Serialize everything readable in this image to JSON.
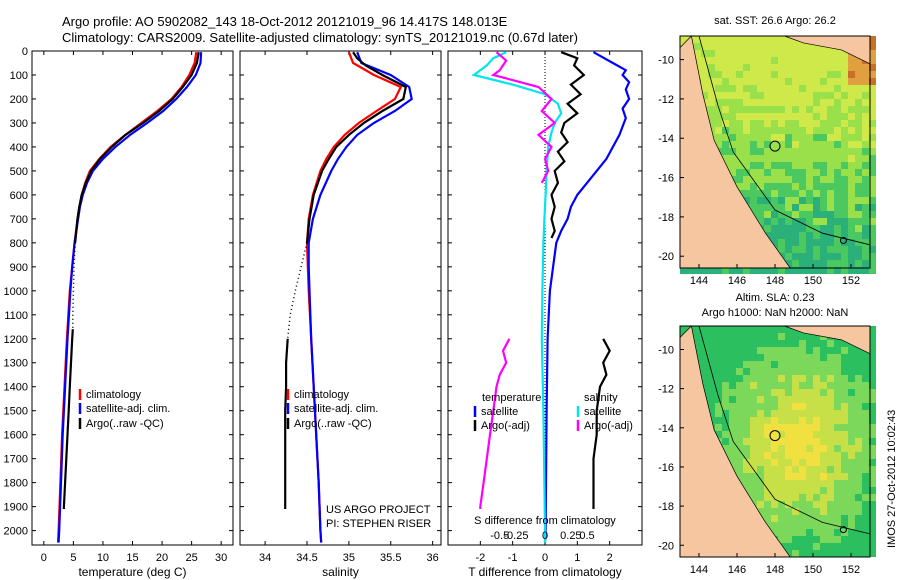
{
  "header": {
    "line1": "Argo profile: AO 5902082_143 18-Oct-2012 20121019_96 14.417S 148.013E",
    "line2": "Climatology: CARS2009. Satellite-adjusted climatology: synTS_20121019.nc (0.67d later)"
  },
  "colors": {
    "clim": "#ff0000",
    "sat": "#0000ff",
    "argo": "#000000",
    "cyan": "#00e5ee",
    "magenta": "#ff00ff"
  },
  "depth_axis": {
    "ticks": [
      0,
      100,
      200,
      300,
      400,
      500,
      600,
      700,
      800,
      900,
      1000,
      1100,
      1200,
      1300,
      1400,
      1500,
      1600,
      1700,
      1800,
      1900,
      2000
    ],
    "range": [
      0,
      2060
    ]
  },
  "panels": [
    {
      "id": "temperature",
      "chart_data": {
        "type": "line",
        "xlabel": "temperature (deg C)",
        "xlim": [
          -2,
          32
        ],
        "xticks": [
          0,
          5,
          10,
          15,
          20,
          25,
          30
        ],
        "xticklabels": [
          "0",
          "5",
          "10",
          "15",
          "20",
          "25",
          "30"
        ],
        "legend": [
          "climatology",
          "satellite-adj. clim.",
          "Argo(..raw -QC)"
        ],
        "series": [
          {
            "name": "climatology",
            "color": "clim",
            "dotted": false,
            "depth": [
              5,
              50,
              100,
              150,
              200,
              250,
              300,
              350,
              400,
              450,
              500,
              550,
              600,
              650,
              700,
              800,
              900,
              1000,
              1200,
              1400,
              1600,
              1800,
              2000,
              2050
            ],
            "values": [
              25.8,
              25.5,
              24.6,
              23.3,
              21.6,
              19.2,
              16.5,
              13.8,
              11.3,
              9.4,
              7.8,
              7.0,
              6.4,
              6.0,
              5.7,
              5.2,
              4.8,
              4.4,
              3.9,
              3.5,
              3.1,
              2.8,
              2.5,
              2.4
            ]
          },
          {
            "name": "satellite-adj. clim.",
            "color": "sat",
            "dotted": false,
            "depth": [
              5,
              50,
              100,
              150,
              200,
              250,
              300,
              350,
              400,
              450,
              500,
              550,
              600,
              650,
              700,
              800,
              900,
              1000,
              1200,
              1400,
              1600,
              1800,
              2000,
              2050
            ],
            "values": [
              26.6,
              26.5,
              25.7,
              24.2,
              22.4,
              20.2,
              17.5,
              14.6,
              12.1,
              10.0,
              8.3,
              7.3,
              6.6,
              6.1,
              5.8,
              5.2,
              4.8,
              4.5,
              4.0,
              3.6,
              3.2,
              2.9,
              2.6,
              2.5
            ]
          },
          {
            "name": "Argo",
            "color": "argo",
            "dotted": false,
            "depth": [
              5,
              20,
              50,
              100,
              150,
              200,
              250,
              300,
              350,
              400,
              450,
              500,
              550,
              600,
              650,
              700,
              750,
              800
            ],
            "values": [
              26.2,
              26.1,
              25.9,
              25.0,
              23.5,
              21.8,
              19.5,
              16.8,
              13.8,
              11.5,
              9.5,
              8.0,
              7.1,
              6.4,
              6.0,
              5.7,
              5.5,
              5.3
            ]
          },
          {
            "name": "Argo dotted",
            "color": "argo",
            "dotted": true,
            "depth": [
              800,
              900,
              1000,
              1100,
              1160
            ],
            "values": [
              5.3,
              5.1,
              5.0,
              4.9,
              4.9
            ]
          },
          {
            "name": "Argo deep",
            "color": "argo",
            "dotted": false,
            "depth": [
              1160,
              1200,
              1300,
              1400,
              1500,
              1600,
              1700,
              1800,
              1900,
              1910
            ],
            "values": [
              4.9,
              4.8,
              4.6,
              4.4,
              4.2,
              4.0,
              3.8,
              3.6,
              3.4,
              3.4
            ]
          }
        ]
      }
    },
    {
      "id": "salinity",
      "chart_data": {
        "type": "line",
        "xlabel": "salinity",
        "xlim": [
          33.7,
          36.1
        ],
        "xticks": [
          34,
          34.5,
          35,
          35.5,
          36
        ],
        "xticklabels": [
          "34",
          "34.5",
          "35",
          "35.5",
          "36"
        ],
        "legend": [
          "climatology",
          "satellite-adj. clim.",
          "Argo(..raw -QC)"
        ],
        "series": [
          {
            "name": "climatology",
            "color": "clim",
            "dotted": false,
            "depth": [
              5,
              50,
              100,
              150,
              200,
              250,
              300,
              350,
              400,
              450,
              500,
              600,
              700,
              800,
              900,
              1000,
              1200,
              1400,
              1600,
              1800,
              2000,
              2050
            ],
            "values": [
              35.0,
              35.05,
              35.3,
              35.62,
              35.55,
              35.33,
              35.12,
              34.95,
              34.82,
              34.73,
              34.66,
              34.57,
              34.52,
              34.5,
              34.51,
              34.52,
              34.55,
              34.58,
              34.61,
              34.64,
              34.66,
              34.67
            ]
          },
          {
            "name": "satellite-adj. clim.",
            "color": "sat",
            "dotted": false,
            "depth": [
              5,
              50,
              100,
              150,
              200,
              250,
              300,
              350,
              400,
              450,
              500,
              600,
              700,
              800,
              900,
              1000,
              1200,
              1400,
              1600,
              1800,
              2000,
              2050
            ],
            "values": [
              35.1,
              35.15,
              35.5,
              35.72,
              35.75,
              35.55,
              35.3,
              35.1,
              34.97,
              34.87,
              34.79,
              34.66,
              34.57,
              34.52,
              34.52,
              34.53,
              34.55,
              34.58,
              34.61,
              34.64,
              34.66,
              34.67
            ]
          },
          {
            "name": "Argo",
            "color": "argo",
            "dotted": false,
            "depth": [
              5,
              30,
              60,
              100,
              150,
              200,
              250,
              300,
              350,
              400,
              450,
              500,
              600,
              700,
              800
            ],
            "values": [
              35.05,
              35.1,
              35.2,
              35.4,
              35.68,
              35.65,
              35.4,
              35.18,
              35.0,
              34.85,
              34.76,
              34.68,
              34.58,
              34.53,
              34.5
            ]
          },
          {
            "name": "Argo dotted",
            "color": "argo",
            "dotted": true,
            "depth": [
              800,
              900,
              1000,
              1100,
              1200
            ],
            "values": [
              34.5,
              34.43,
              34.36,
              34.3,
              34.27
            ]
          },
          {
            "name": "Argo deep",
            "color": "argo",
            "dotted": false,
            "depth": [
              1200,
              1300,
              1400,
              1500,
              1600,
              1700,
              1800,
              1900,
              1910
            ],
            "values": [
              34.27,
              34.25,
              34.25,
              34.24,
              34.24,
              34.24,
              34.24,
              34.24,
              34.24
            ]
          }
        ],
        "annotations": [
          "US ARGO PROJECT",
          "PI: STEPHEN RISER"
        ]
      }
    },
    {
      "id": "difference",
      "chart_data": {
        "type": "line",
        "xlabel": "T difference from climatology",
        "xlabel_top": "S difference from climatology",
        "xlim": [
          -3,
          3
        ],
        "xticks": [
          -2,
          -1,
          0,
          1,
          2
        ],
        "xticklabels": [
          "-2",
          "-1",
          "0",
          "1",
          "2"
        ],
        "top_xticks": [
          -2,
          -1,
          0,
          1,
          2
        ],
        "top_xticklabels": [
          "-0.5",
          "-0.25",
          "0",
          "0.25",
          "0.5"
        ],
        "legend_groups": [
          {
            "title": "temperature",
            "items": [
              "satellite",
              "Argo(-adj)"
            ]
          },
          {
            "title": "salinity",
            "items": [
              "satellite",
              "Argo(-adj)"
            ]
          }
        ],
        "series": [
          {
            "name": "T satellite",
            "color": "sat",
            "dotted": false,
            "depth": [
              5,
              50,
              80,
              100,
              130,
              160,
              200,
              240,
              280,
              350,
              400,
              450,
              500,
              550,
              600,
              650,
              700,
              750,
              800,
              1000,
              1200,
              1500,
              2000,
              2050
            ],
            "values": [
              1.5,
              2.1,
              2.5,
              2.4,
              2.6,
              2.5,
              2.6,
              2.4,
              2.5,
              2.3,
              2.1,
              1.9,
              1.6,
              1.3,
              1.0,
              0.8,
              0.7,
              0.5,
              0.35,
              0.15,
              0.08,
              0.05,
              0.02,
              0.0
            ]
          },
          {
            "name": "T Argo",
            "color": "argo",
            "dotted": false,
            "depth": [
              5,
              30,
              60,
              100,
              140,
              180,
              220,
              260,
              300,
              340,
              380,
              420,
              460,
              500,
              550,
              600,
              650,
              700,
              750,
              780
            ],
            "values": [
              0.5,
              1.0,
              0.9,
              1.2,
              0.8,
              1.1,
              0.7,
              1.0,
              0.6,
              0.5,
              0.7,
              0.4,
              0.6,
              0.3,
              0.4,
              0.2,
              0.3,
              0.2,
              0.3,
              0.2
            ]
          },
          {
            "name": "T Argo deep",
            "color": "argo",
            "dotted": false,
            "depth": [
              1200,
              1250,
              1300,
              1350,
              1400,
              1500,
              1600,
              1700,
              1800,
              1900,
              1910
            ],
            "values": [
              1.8,
              2.0,
              1.8,
              1.9,
              1.7,
              1.6,
              1.6,
              1.5,
              1.5,
              1.5,
              1.5
            ]
          },
          {
            "name": "S satellite",
            "color": "cyan",
            "dotted": false,
            "depth": [
              5,
              30,
              60,
              100,
              140,
              180,
              220,
              260,
              300,
              340,
              400,
              500,
              600,
              700,
              800,
              1000,
              1200,
              1500,
              2000,
              2050
            ],
            "values": [
              -1.2,
              -1.6,
              -1.8,
              -2.2,
              -1.0,
              0.0,
              0.4,
              0.5,
              0.3,
              0.2,
              0.1,
              0.05,
              0.02,
              -0.02,
              -0.05,
              -0.08,
              -0.1,
              -0.05,
              0.0,
              0.0
            ]
          },
          {
            "name": "S Argo",
            "color": "magenta",
            "dotted": false,
            "depth": [
              5,
              40,
              80,
              100,
              150,
              200,
              250,
              300,
              350,
              400,
              450,
              500,
              550
            ],
            "values": [
              -1.5,
              -1.2,
              -1.4,
              -1.6,
              -0.2,
              0.2,
              -0.1,
              0.3,
              -0.2,
              0.2,
              0.0,
              0.1,
              -0.1
            ]
          },
          {
            "name": "S Argo deep",
            "color": "magenta",
            "dotted": false,
            "depth": [
              1200,
              1250,
              1300,
              1350,
              1400,
              1500,
              1600,
              1700,
              1800,
              1900,
              1910
            ],
            "values": [
              -1.1,
              -1.3,
              -1.2,
              -1.4,
              -1.5,
              -1.6,
              -1.7,
              -1.8,
              -1.9,
              -2.0,
              -2.0
            ]
          }
        ]
      }
    }
  ],
  "maps": [
    {
      "id": "sst-map",
      "title_lines": [
        "sat. SST: 26.6 Argo: 26.2"
      ],
      "chart_data": {
        "type": "heatmap",
        "xticks": [
          144,
          146,
          148,
          150,
          152
        ],
        "yticks": [
          -10,
          -12,
          -14,
          -16,
          -18,
          -20
        ],
        "xlim": [
          143,
          153
        ],
        "ylim": [
          -20.6,
          -8.8
        ],
        "marker": {
          "lon": 148.0,
          "lat": -14.4
        }
      }
    },
    {
      "id": "sla-map",
      "title_lines": [
        "Altim. SLA: 0.23",
        "Argo h1000: NaN h2000: NaN"
      ],
      "chart_data": {
        "type": "heatmap",
        "xticks": [
          144,
          146,
          148,
          150,
          152
        ],
        "yticks": [
          -10,
          -12,
          -14,
          -16,
          -18,
          -20
        ],
        "xlim": [
          143,
          153
        ],
        "ylim": [
          -20.6,
          -8.8
        ],
        "marker": {
          "lon": 148.0,
          "lat": -14.4
        }
      }
    }
  ],
  "credit": "IMOS 27-Oct-2012 10:02:43"
}
